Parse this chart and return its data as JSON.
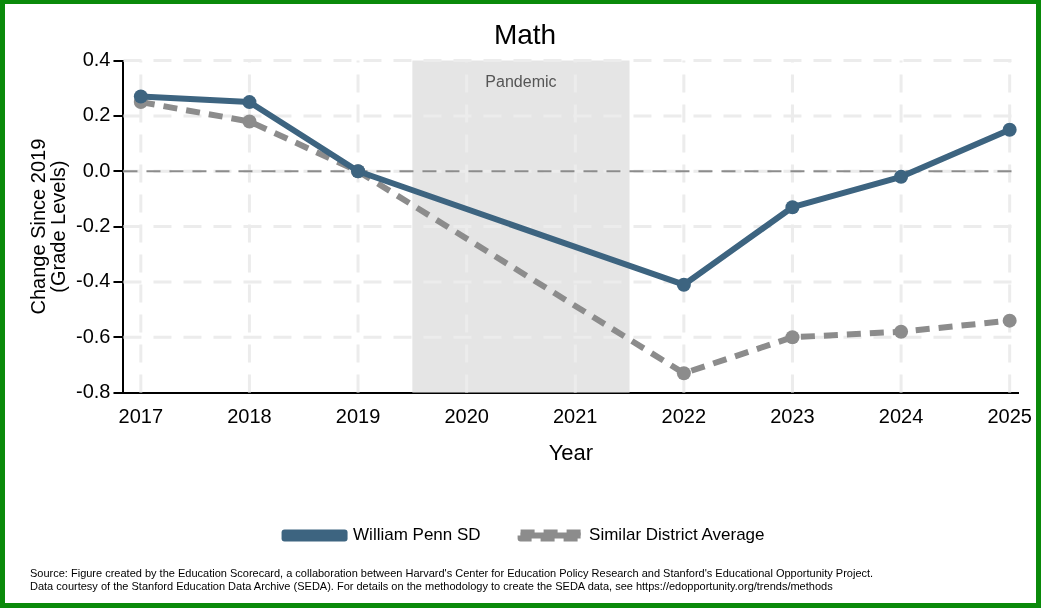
{
  "chart_data": {
    "type": "line",
    "title": "Math",
    "xlabel": "Year",
    "ylabel": "Change Since 2019\n(Grade Levels)",
    "series": [
      {
        "name": "William Penn SD",
        "color": "#3d6480",
        "line_style": "solid",
        "x": [
          2017,
          2018,
          2019,
          2022,
          2023,
          2024,
          2025
        ],
        "values": [
          0.27,
          0.25,
          0,
          -0.41,
          -0.13,
          -0.02,
          0.15
        ]
      },
      {
        "name": "Similar District Average",
        "color": "#8c8c8c",
        "line_style": "dashed",
        "x": [
          2017,
          2018,
          2019,
          2022,
          2023,
          2024,
          2025
        ],
        "values": [
          0.25,
          0.18,
          0,
          -0.73,
          -0.6,
          -0.58,
          -0.54
        ]
      }
    ],
    "xlim": [
      2016.84,
      2025.08
    ],
    "xticks": [
      2017,
      2018,
      2019,
      2020,
      2021,
      2022,
      2023,
      2024,
      2025
    ],
    "ylim": [
      -0.8,
      0.4
    ],
    "yticks": [
      {
        "value": -0.8,
        "label": "-0.8"
      },
      {
        "value": -0.6,
        "label": "-0.6"
      },
      {
        "value": -0.4,
        "label": "-0.4"
      },
      {
        "value": -0.2,
        "label": "-0.2"
      },
      {
        "value": 0,
        "label": "0.0"
      },
      {
        "value": 0.2,
        "label": "0.2"
      },
      {
        "value": 0.4,
        "label": "0.4"
      }
    ],
    "bands": [
      {
        "axis": "x",
        "from": 2019.5,
        "to": 2021.5,
        "label": "Pandemic",
        "color": "#e5e5e5"
      }
    ],
    "ref_lines": [
      {
        "axis": "y",
        "value": 0,
        "color": "#8c8c8c",
        "line_style": "dashed"
      }
    ],
    "grid": true,
    "legend": "bottom",
    "marker": "circle",
    "annotations": [
      "Source: Figure created by the Education Scorecard, a collaboration between Harvard's Center for Education Policy Research and Stanford's Educational Opportunity Project.",
      "Data courtesy of the Stanford Education Data Archive (SEDA). For details on the methodology to create the SEDA data, see https://edopportunity.org/trends/methods"
    ]
  }
}
